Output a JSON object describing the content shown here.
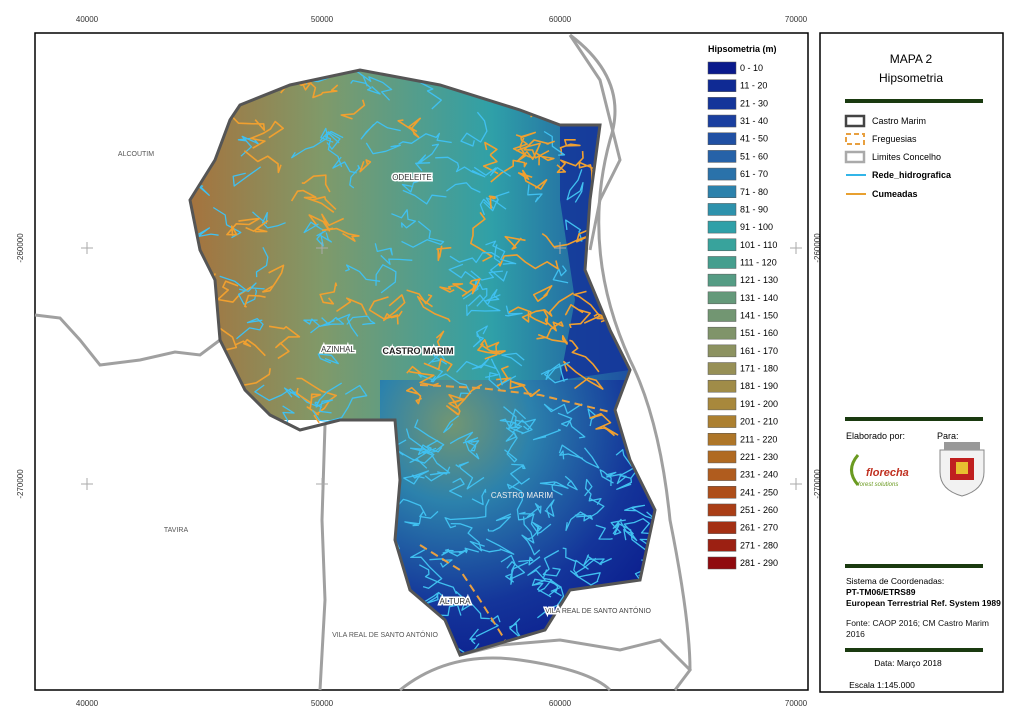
{
  "map": {
    "grid_labels": {
      "top": [
        "40000",
        "50000",
        "60000",
        "70000"
      ],
      "bottom": [
        "40000",
        "50000",
        "60000",
        "70000"
      ],
      "left": [
        "-260000",
        "-270000"
      ],
      "right": [
        "-260000",
        "-270000"
      ]
    },
    "place_labels": [
      "ALCOUTIM",
      "ODELEITE",
      "AZINHAL",
      "CASTRO MARIM",
      "CASTRO MARIM",
      "TAVIRA",
      "ALTURA",
      "VILA REAL DE SANTO ANTÓNIO",
      "VILA REAL DE SANTO ANTÓNIO"
    ],
    "legend": {
      "title": "Hipsometria (m)",
      "classes": [
        {
          "label": "0 - 10",
          "color": "#0a1a8c"
        },
        {
          "label": "11 - 20",
          "color": "#0f2a94"
        },
        {
          "label": "21 - 30",
          "color": "#14359a"
        },
        {
          "label": "31 - 40",
          "color": "#1a3fa0"
        },
        {
          "label": "41 - 50",
          "color": "#2050a4"
        },
        {
          "label": "51 - 60",
          "color": "#2662a8"
        },
        {
          "label": "61 - 70",
          "color": "#2a72aa"
        },
        {
          "label": "71 - 80",
          "color": "#2c82ac"
        },
        {
          "label": "81 - 90",
          "color": "#2e92ac"
        },
        {
          "label": "91 - 100",
          "color": "#2fa0a8"
        },
        {
          "label": "101 - 110",
          "color": "#38a39c"
        },
        {
          "label": "111 - 120",
          "color": "#459e8e"
        },
        {
          "label": "121 - 130",
          "color": "#559c84"
        },
        {
          "label": "131 - 140",
          "color": "#64997a"
        },
        {
          "label": "141 - 150",
          "color": "#729672"
        },
        {
          "label": "151 - 160",
          "color": "#80946a"
        },
        {
          "label": "161 - 170",
          "color": "#8c9260"
        },
        {
          "label": "171 - 180",
          "color": "#979056"
        },
        {
          "label": "181 - 190",
          "color": "#a08c48"
        },
        {
          "label": "191 - 200",
          "color": "#a8883c"
        },
        {
          "label": "201 - 210",
          "color": "#ac8030"
        },
        {
          "label": "211 - 220",
          "color": "#ae7628"
        },
        {
          "label": "221 - 230",
          "color": "#b06a22"
        },
        {
          "label": "231 - 240",
          "color": "#b05c1e"
        },
        {
          "label": "241 - 250",
          "color": "#ae4e1a"
        },
        {
          "label": "251 - 260",
          "color": "#aa3e16"
        },
        {
          "label": "261 - 270",
          "color": "#a43014"
        },
        {
          "label": "271 - 280",
          "color": "#9c2012"
        },
        {
          "label": "281 - 290",
          "color": "#900a0e"
        }
      ]
    }
  },
  "panel": {
    "title": "MAPA 2",
    "subtitle": "Hipsometria",
    "layers": [
      "Castro Marim",
      "Freguesias",
      "Limites Concelho",
      "Rede_hidrografica",
      "Cumeadas"
    ],
    "made_by": "Elaborado por:",
    "made_for": "Para:",
    "logo_name": "florecha",
    "logo_tagline": "forest solutions",
    "crs": [
      "Sistema de Coordenadas:",
      "PT-TM06/ETRS89",
      "European Terrestrial Ref. System 1989"
    ],
    "source": "Fonte: CAOP 2016; CM Castro Marim 2016",
    "date": "Data: Março 2018",
    "scale": "Escala 1:145.000"
  }
}
